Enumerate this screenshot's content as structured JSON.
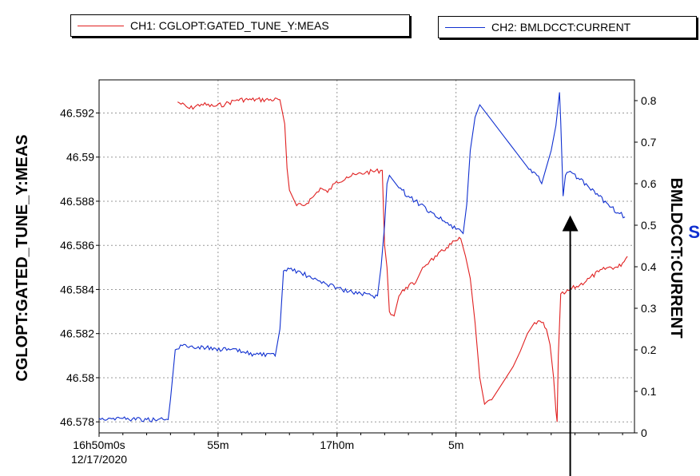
{
  "legend": {
    "ch1": {
      "label": "CH1: CGLOPT:GATED_TUNE_Y:MEAS",
      "color": "#e02020"
    },
    "ch2": {
      "label": "CH2: BMLDCCT:CURRENT",
      "color": "#1030d0"
    }
  },
  "side_mark": "S",
  "chart_data": {
    "type": "line",
    "x_unit": "minutes after 16:50:00 on 12/17/2020",
    "xlim": [
      0,
      22.5
    ],
    "x_ticks": [
      {
        "x": 0,
        "label": "16h50m0s",
        "sublabel": "12/17/2020"
      },
      {
        "x": 5,
        "label": "55m"
      },
      {
        "x": 10,
        "label": "17h0m"
      },
      {
        "x": 15,
        "label": "5m"
      }
    ],
    "left_axis": {
      "label": "CGLOPT:GATED_TUNE_Y:MEAS",
      "ylim": [
        46.5775,
        46.5935
      ],
      "ticks": [
        46.578,
        46.58,
        46.582,
        46.584,
        46.586,
        46.588,
        46.59,
        46.592
      ],
      "tick_labels": [
        "46.578",
        "46.58",
        "46.582",
        "46.584",
        "46.586",
        "46.588",
        "46.59",
        "46.592"
      ]
    },
    "right_axis": {
      "label": "BMLDCCT:CURRENT",
      "ylim": [
        0,
        0.85
      ],
      "ticks": [
        0,
        0.1,
        0.2,
        0.3,
        0.4,
        0.5,
        0.6,
        0.7,
        0.8
      ],
      "tick_labels": [
        "0",
        "0.1",
        "0.2",
        "0.3",
        "0.4",
        "0.5",
        "0.6",
        "0.7",
        "0.8"
      ]
    },
    "grid": true,
    "series": [
      {
        "name": "CH1: CGLOPT:GATED_TUNE_Y:MEAS",
        "axis": "left",
        "color": "#e02020",
        "points": [
          [
            3.3,
            46.5925
          ],
          [
            3.8,
            46.5922
          ],
          [
            4.3,
            46.5924
          ],
          [
            4.8,
            46.5923
          ],
          [
            5.3,
            46.5924
          ],
          [
            5.8,
            46.5926
          ],
          [
            6.4,
            46.5926
          ],
          [
            7.6,
            46.5926
          ],
          [
            7.8,
            46.5915
          ],
          [
            7.9,
            46.5895
          ],
          [
            8.0,
            46.5885
          ],
          [
            8.3,
            46.5878
          ],
          [
            8.6,
            46.5878
          ],
          [
            9.0,
            46.5882
          ],
          [
            9.3,
            46.5886
          ],
          [
            9.6,
            46.5884
          ],
          [
            9.9,
            46.5888
          ],
          [
            10.4,
            46.5891
          ],
          [
            10.8,
            46.5892
          ],
          [
            11.2,
            46.5893
          ],
          [
            11.9,
            46.5894
          ],
          [
            12.0,
            46.586
          ],
          [
            12.1,
            46.585
          ],
          [
            12.2,
            46.583
          ],
          [
            12.4,
            46.5828
          ],
          [
            12.6,
            46.5837
          ],
          [
            12.9,
            46.5841
          ],
          [
            13.3,
            46.5843
          ],
          [
            13.6,
            46.585
          ],
          [
            13.9,
            46.5853
          ],
          [
            14.2,
            46.5855
          ],
          [
            14.6,
            46.5859
          ],
          [
            15.0,
            46.5862
          ],
          [
            15.2,
            46.5863
          ],
          [
            15.4,
            46.5855
          ],
          [
            15.6,
            46.5845
          ],
          [
            15.8,
            46.5825
          ],
          [
            16.0,
            46.58
          ],
          [
            16.2,
            46.5788
          ],
          [
            16.5,
            46.579
          ],
          [
            16.8,
            46.5795
          ],
          [
            17.1,
            46.58
          ],
          [
            17.4,
            46.5805
          ],
          [
            17.7,
            46.5812
          ],
          [
            18.0,
            46.582
          ],
          [
            18.3,
            46.5825
          ],
          [
            18.6,
            46.5825
          ],
          [
            18.8,
            46.5822
          ],
          [
            18.95,
            46.5815
          ],
          [
            19.1,
            46.58
          ],
          [
            19.2,
            46.5785
          ],
          [
            19.25,
            46.578
          ],
          [
            19.3,
            46.581
          ],
          [
            19.4,
            46.5838
          ],
          [
            19.55,
            46.5838
          ],
          [
            19.8,
            46.584
          ],
          [
            20.2,
            46.5842
          ],
          [
            20.6,
            46.5845
          ],
          [
            21.0,
            46.5848
          ],
          [
            21.4,
            46.585
          ],
          [
            21.8,
            46.585
          ],
          [
            22.0,
            46.5852
          ],
          [
            22.2,
            46.5855
          ]
        ]
      },
      {
        "name": "CH2: BMLDCCT:CURRENT",
        "axis": "right",
        "color": "#1030d0",
        "points": [
          [
            0.0,
            0.035
          ],
          [
            1.0,
            0.035
          ],
          [
            2.0,
            0.032
          ],
          [
            2.9,
            0.032
          ],
          [
            3.0,
            0.08
          ],
          [
            3.2,
            0.2
          ],
          [
            3.5,
            0.21
          ],
          [
            4.5,
            0.205
          ],
          [
            5.5,
            0.2
          ],
          [
            6.5,
            0.19
          ],
          [
            7.4,
            0.185
          ],
          [
            7.6,
            0.25
          ],
          [
            7.75,
            0.39
          ],
          [
            8.0,
            0.395
          ],
          [
            8.5,
            0.385
          ],
          [
            9.0,
            0.37
          ],
          [
            9.5,
            0.36
          ],
          [
            10.0,
            0.35
          ],
          [
            10.5,
            0.34
          ],
          [
            11.0,
            0.335
          ],
          [
            11.5,
            0.33
          ],
          [
            11.7,
            0.33
          ],
          [
            11.85,
            0.4
          ],
          [
            12.0,
            0.5
          ],
          [
            12.1,
            0.6
          ],
          [
            12.2,
            0.62
          ],
          [
            12.6,
            0.59
          ],
          [
            13.0,
            0.57
          ],
          [
            13.5,
            0.55
          ],
          [
            14.0,
            0.53
          ],
          [
            14.5,
            0.51
          ],
          [
            15.0,
            0.49
          ],
          [
            15.3,
            0.48
          ],
          [
            15.45,
            0.55
          ],
          [
            15.6,
            0.68
          ],
          [
            15.8,
            0.76
          ],
          [
            16.0,
            0.79
          ],
          [
            16.4,
            0.76
          ],
          [
            16.8,
            0.73
          ],
          [
            17.2,
            0.7
          ],
          [
            17.6,
            0.67
          ],
          [
            18.0,
            0.64
          ],
          [
            18.4,
            0.62
          ],
          [
            18.6,
            0.6
          ],
          [
            18.8,
            0.64
          ],
          [
            19.0,
            0.68
          ],
          [
            19.2,
            0.74
          ],
          [
            19.35,
            0.82
          ],
          [
            19.4,
            0.75
          ],
          [
            19.5,
            0.57
          ],
          [
            19.6,
            0.62
          ],
          [
            19.8,
            0.63
          ],
          [
            20.2,
            0.61
          ],
          [
            20.6,
            0.59
          ],
          [
            21.0,
            0.57
          ],
          [
            21.4,
            0.55
          ],
          [
            21.8,
            0.53
          ],
          [
            22.1,
            0.52
          ]
        ]
      }
    ],
    "annotations": [
      {
        "type": "arrow",
        "x": 19.8,
        "y_right_from": 0.0,
        "y_right_to": 0.52
      }
    ]
  }
}
